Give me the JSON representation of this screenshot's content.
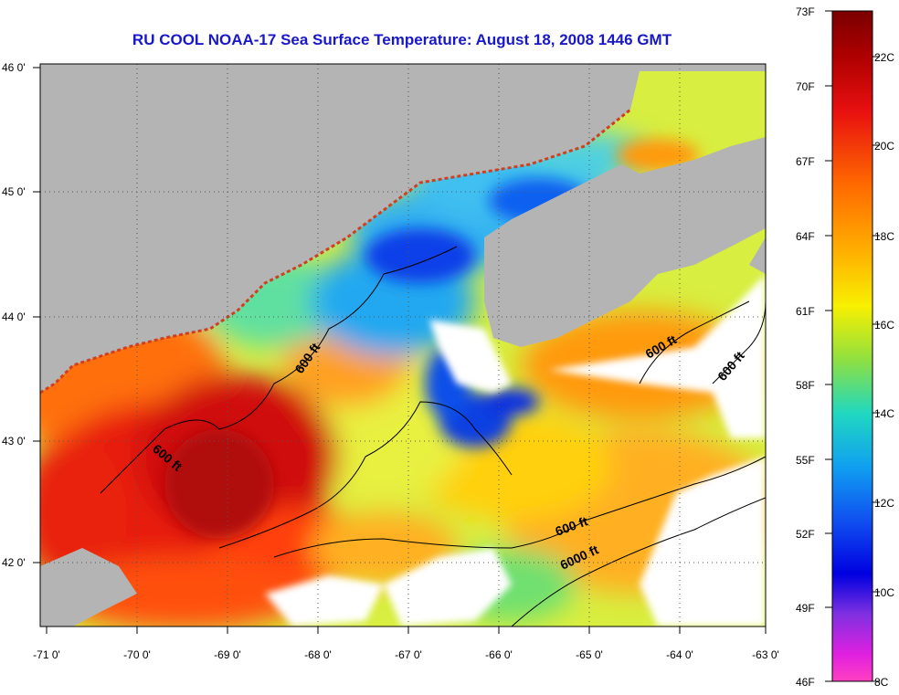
{
  "title": "RU COOL  NOAA-17  Sea Surface Temperature:  August 18, 2008 1446 GMT",
  "map": {
    "lon_ticks": [
      "-71 0'",
      "-70 0'",
      "-69 0'",
      "-68 0'",
      "-67 0'",
      "-66 0'",
      "-65 0'",
      "-64 0'",
      "-63 0'"
    ],
    "lat_ticks": [
      "46 0'",
      "45 0'",
      "44 0'",
      "43 0'",
      "42 0'"
    ],
    "contour_labels": [
      "600 ft",
      "600 ft",
      "600 ft",
      "600 ft",
      "600 ft",
      "6000 ft"
    ],
    "colors": {
      "land": "#b4b4b4",
      "cloud": "#ffffff",
      "contour": "#000000"
    }
  },
  "colorbar": {
    "f_labels": [
      "73F",
      "70F",
      "67F",
      "64F",
      "61F",
      "58F",
      "55F",
      "52F",
      "49F",
      "46F"
    ],
    "c_labels": [
      "22C",
      "20C",
      "18C",
      "16C",
      "14C",
      "12C",
      "10C",
      "8C"
    ]
  }
}
